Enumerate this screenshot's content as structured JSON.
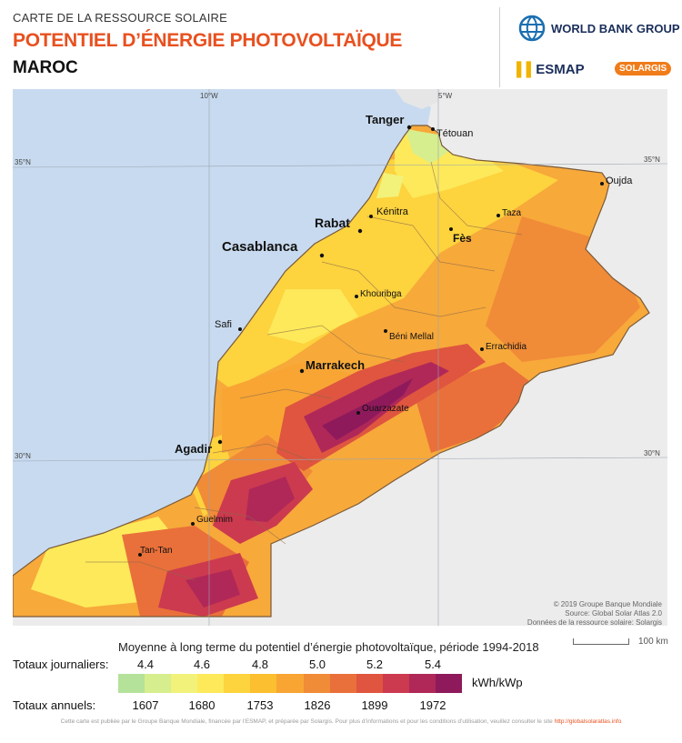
{
  "header": {
    "subtitle": "CARTE DE LA RESSOURCE SOLAIRE",
    "title": "POTENTIEL D’ÉNERGIE PHOTOVOLTAÏQUE",
    "country": "MAROC"
  },
  "logos": {
    "world_bank": "WORLD BANK GROUP",
    "esmap": "ESMAP",
    "solargis": "SOLARGIS"
  },
  "map": {
    "graticule": {
      "lon_labels": [
        "10°W",
        "5°W"
      ],
      "lat_labels": [
        "35°N",
        "30°N"
      ]
    },
    "cities": [
      "Tanger",
      "Tétouan",
      "Oujda",
      "Kénitra",
      "Taza",
      "Rabat",
      "Fès",
      "Casablanca",
      "Khouribga",
      "Safi",
      "Béni Mellal",
      "Errachidia",
      "Marrakech",
      "Ouarzazate",
      "Agadir",
      "Guelmim",
      "Tan-Tan"
    ],
    "credits": [
      "© 2019 Groupe Banque Mondiale",
      "Source: Global Solar Atlas 2.0",
      "Données de la ressource solaire: Solargis"
    ],
    "scale_label": "100 km",
    "colors": {
      "sea": "#c8daef",
      "neighbour": "#ececec",
      "border": "#8a6a4a"
    }
  },
  "legend": {
    "title": "Moyenne à long terme du potentiel d’énergie photovoltaïque, période 1994-2018",
    "daily_label": "Totaux journaliers:",
    "daily_ticks": [
      "4.4",
      "4.6",
      "4.8",
      "5.0",
      "5.2",
      "5.4"
    ],
    "annual_label": "Totaux annuels:",
    "annual_ticks": [
      "1607",
      "1680",
      "1753",
      "1826",
      "1899",
      "1972"
    ],
    "unit": "kWh/kWp",
    "colors": [
      "#b4e29a",
      "#d6ee8e",
      "#f2f27a",
      "#fde95a",
      "#fdd33e",
      "#fbbf30",
      "#f8a534",
      "#f08b38",
      "#e9703a",
      "#df553f",
      "#cc3a4f",
      "#b02858",
      "#8e1a5c"
    ]
  },
  "footer": {
    "text": "Cette carte est publiée par le Groupe Banque Mondiale, financée par l’ESMAP, et préparée par Solargis. Pour plus d’informations et pour les conditions d’utilisation, veuillez consulter le site",
    "link": "http://globalsolaratlas.info"
  }
}
